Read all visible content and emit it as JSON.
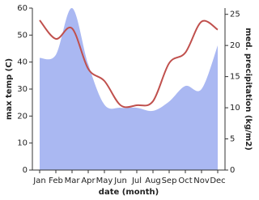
{
  "chart_data": {
    "type": "line-area",
    "x_label": "date (month)",
    "y_label": "max temp (C)",
    "y2_label": "med. precipitation (kg/m2)",
    "categories": [
      "Jan",
      "Feb",
      "Mar",
      "Apr",
      "May",
      "Jun",
      "Jul",
      "Aug",
      "Sep",
      "Oct",
      "Nov",
      "Dec"
    ],
    "series": [
      {
        "color": "#c0504d",
        "kind": "line",
        "values": [
          55.5,
          48.6,
          52.5,
          37.5,
          33,
          24,
          24,
          25.5,
          39.6,
          43.5,
          55,
          52
        ]
      },
      {
        "color": "#aab8f2",
        "kind": "area",
        "axis": "y2",
        "values": [
          18,
          18.5,
          26,
          17,
          10.5,
          10,
          10,
          9.5,
          11,
          13.5,
          13,
          20
        ]
      }
    ],
    "ylim": [
      0,
      60
    ],
    "yticks": [
      0,
      10,
      20,
      30,
      40,
      50,
      60
    ],
    "y2lim": [
      0,
      26
    ],
    "y2ticks": [
      0,
      5,
      10,
      15,
      20,
      25
    ],
    "grid": false
  }
}
